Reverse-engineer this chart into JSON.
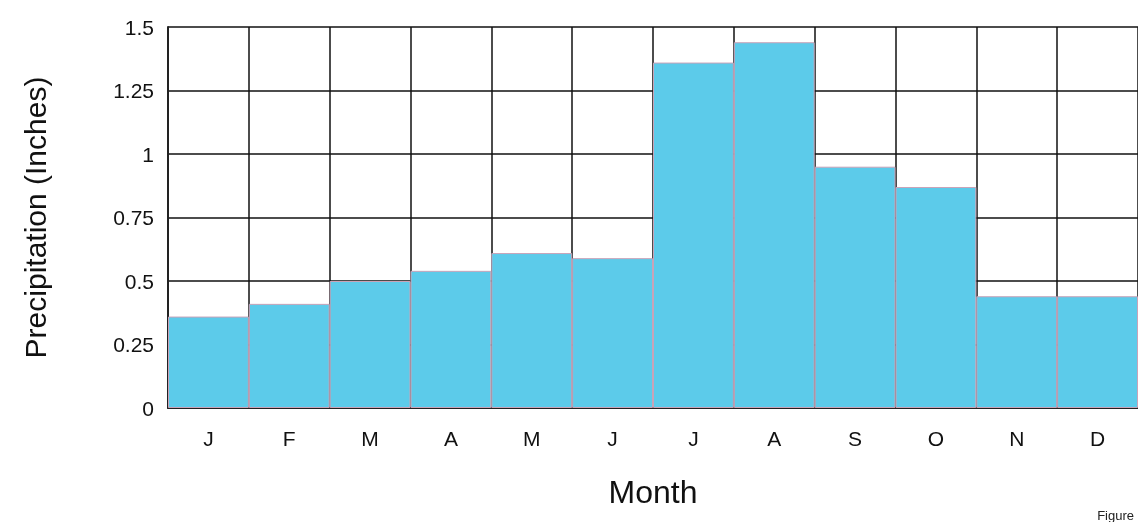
{
  "chart_data": {
    "type": "bar",
    "xlabel": "Month",
    "ylabel": "Precipitation (Inches)",
    "categories": [
      "J",
      "F",
      "M",
      "A",
      "M",
      "J",
      "J",
      "A",
      "S",
      "O",
      "N",
      "D"
    ],
    "values": [
      0.36,
      0.41,
      0.5,
      0.54,
      0.61,
      0.59,
      1.36,
      1.44,
      0.95,
      0.87,
      0.44,
      0.44
    ],
    "color": "#5ccbea",
    "ylim": [
      0,
      1.5
    ],
    "yticks": [
      0,
      0.25,
      0.5,
      0.75,
      1,
      1.25,
      1.5
    ],
    "grid": true,
    "annotations": [
      "Figure"
    ]
  }
}
